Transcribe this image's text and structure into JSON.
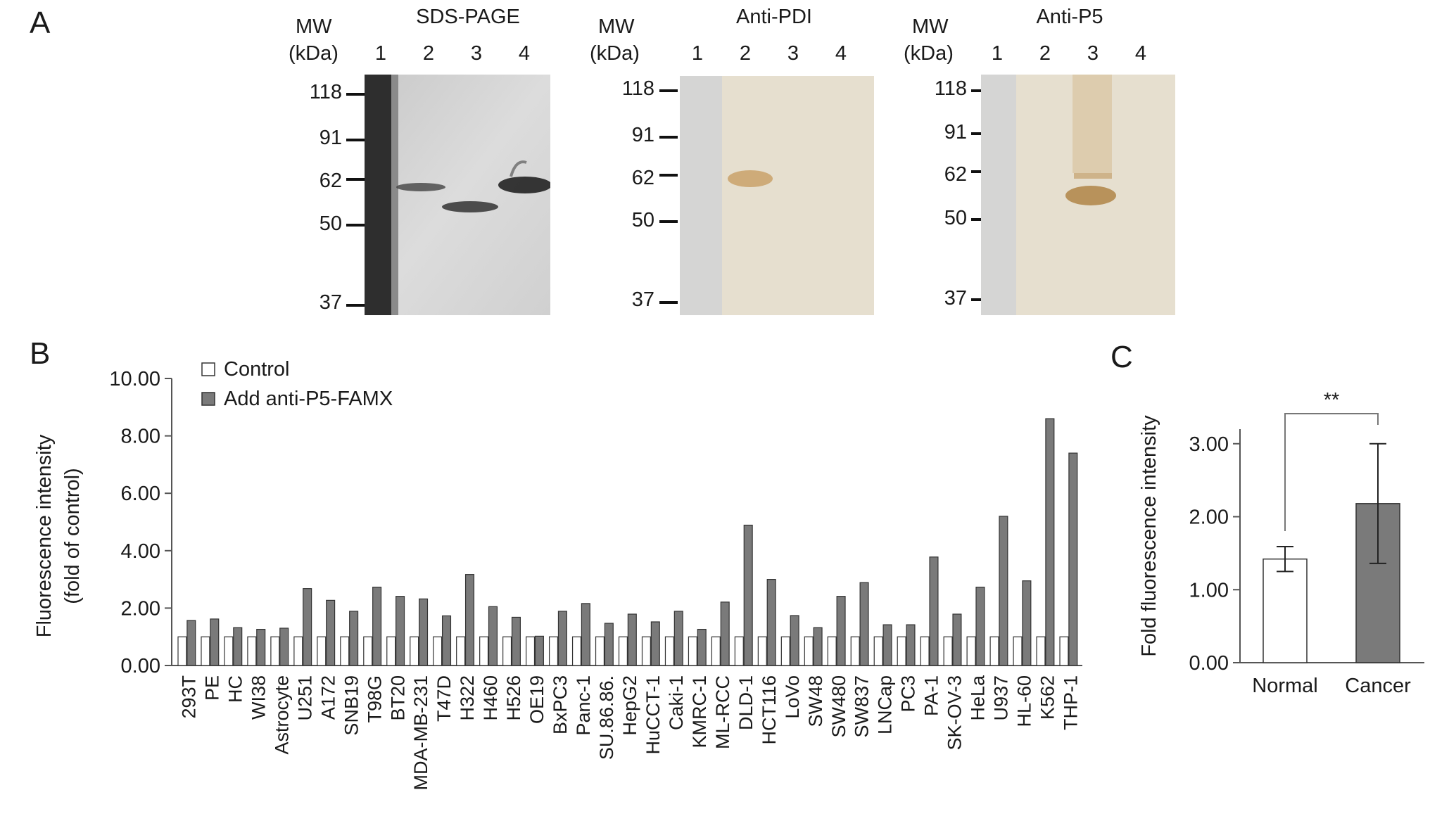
{
  "panels": {
    "a": {
      "letter": "A",
      "blots": [
        {
          "title": "SDS-PAGE",
          "mw_label": "MW",
          "kda_label": "(kDa)",
          "lanes": [
            "1",
            "2",
            "3",
            "4"
          ],
          "markers": [
            "118",
            "91",
            "62",
            "50",
            "37"
          ]
        },
        {
          "title": "Anti-PDI",
          "mw_label": "MW",
          "kda_label": "(kDa)",
          "lanes": [
            "1",
            "2",
            "3",
            "4"
          ],
          "markers": [
            "118",
            "91",
            "62",
            "50",
            "37"
          ]
        },
        {
          "title": "Anti-P5",
          "mw_label": "MW",
          "kda_label": "(kDa)",
          "lanes": [
            "1",
            "2",
            "3",
            "4"
          ],
          "markers": [
            "118",
            "91",
            "62",
            "50",
            "37"
          ]
        }
      ]
    },
    "b": {
      "letter": "B"
    },
    "c": {
      "letter": "C"
    }
  },
  "chart_data": [
    {
      "type": "bar",
      "panel": "B",
      "ylabel_line1": "Fluorescence intensity",
      "ylabel_line2": "(fold of control)",
      "ylim": [
        0,
        10
      ],
      "yticks": [
        "0.00",
        "2.00",
        "4.00",
        "6.00",
        "8.00",
        "10.00"
      ],
      "legend_placement": "top-left",
      "categories": [
        "293T",
        "PE",
        "HC",
        "WI38",
        "Astrocyte",
        "U251",
        "A172",
        "SNB19",
        "T98G",
        "BT20",
        "MDA-MB-231",
        "T47D",
        "H322",
        "H460",
        "H526",
        "OE19",
        "BxPC3",
        "Panc-1",
        "SU.86.86.",
        "HepG2",
        "HuCCT-1",
        "Caki-1",
        "KMRC-1",
        "ML-RCC",
        "DLD-1",
        "HCT116",
        "LoVo",
        "SW48",
        "SW480",
        "SW837",
        "LNCap",
        "PC3",
        "PA-1",
        "SK-OV-3",
        "HeLa",
        "U937",
        "HL-60",
        "K562",
        "THP-1"
      ],
      "series": [
        {
          "name": "Control",
          "color": "#ffffff",
          "values": [
            1,
            1,
            1,
            1,
            1,
            1,
            1,
            1,
            1,
            1,
            1,
            1,
            1,
            1,
            1,
            1,
            1,
            1,
            1,
            1,
            1,
            1,
            1,
            1,
            1,
            1,
            1,
            1,
            1,
            1,
            1,
            1,
            1,
            1,
            1,
            1,
            1,
            1,
            1
          ]
        },
        {
          "name": "Add anti-P5-FAMX",
          "color": "#7a7a7a",
          "values": [
            1.57,
            1.62,
            1.32,
            1.26,
            1.3,
            2.68,
            2.27,
            1.89,
            2.73,
            2.41,
            2.32,
            1.73,
            3.17,
            2.05,
            1.68,
            1.02,
            1.89,
            2.16,
            1.47,
            1.79,
            1.52,
            1.89,
            1.26,
            2.21,
            4.89,
            3.0,
            1.74,
            1.32,
            2.41,
            2.89,
            1.42,
            1.42,
            3.78,
            1.79,
            2.73,
            5.2,
            2.95,
            8.6,
            7.4
          ]
        }
      ]
    },
    {
      "type": "bar",
      "panel": "C",
      "ylabel": "Fold fluorescence intensity",
      "ylim": [
        0,
        3.2
      ],
      "yticks": [
        "0.00",
        "1.00",
        "2.00",
        "3.00"
      ],
      "categories": [
        "Normal",
        "Cancer"
      ],
      "values": [
        1.42,
        2.18
      ],
      "errors": [
        0.17,
        0.82
      ],
      "colors": [
        "#ffffff",
        "#7a7a7a"
      ],
      "significance": "**"
    }
  ]
}
